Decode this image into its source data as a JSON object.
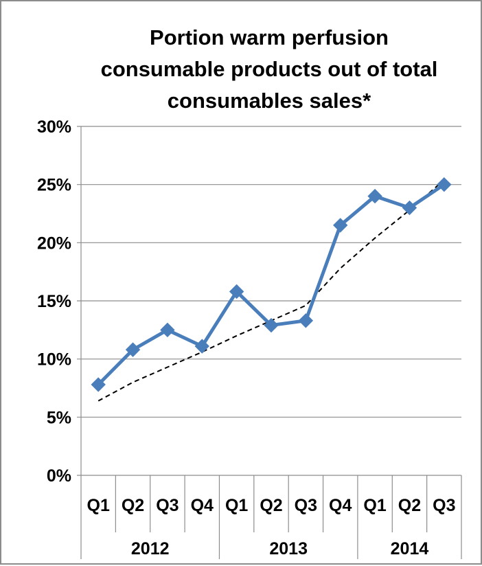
{
  "chart_data": {
    "type": "line",
    "title_lines": [
      "Portion warm perfusion",
      "consumable products out of total",
      "consumables sales*"
    ],
    "categories": [
      "Q1",
      "Q2",
      "Q3",
      "Q4",
      "Q1",
      "Q2",
      "Q3",
      "Q4",
      "Q1",
      "Q2",
      "Q3"
    ],
    "category_groups": [
      {
        "label": "2012",
        "span": 4
      },
      {
        "label": "2013",
        "span": 4
      },
      {
        "label": "2014",
        "span": 3
      }
    ],
    "series": [
      {
        "values": [
          7.8,
          10.8,
          12.5,
          11.1,
          15.8,
          12.9,
          13.3,
          21.5,
          24.0,
          23.0,
          25.0
        ],
        "color": "#4a7ebb",
        "marker": "diamond"
      }
    ],
    "trendline": {
      "style": "dashed",
      "color": "#000000",
      "values": [
        6.4,
        8.0,
        9.3,
        10.6,
        12.0,
        13.3,
        14.6,
        17.8,
        20.4,
        22.8,
        25.4
      ]
    },
    "ylim": [
      0,
      30
    ],
    "yticks": [
      0,
      5,
      10,
      15,
      20,
      25,
      30
    ],
    "ytick_labels": [
      "0%",
      "5%",
      "10%",
      "15%",
      "20%",
      "25%",
      "30%"
    ],
    "xlabel": "",
    "ylabel": "",
    "grid": true,
    "legend": "none"
  }
}
